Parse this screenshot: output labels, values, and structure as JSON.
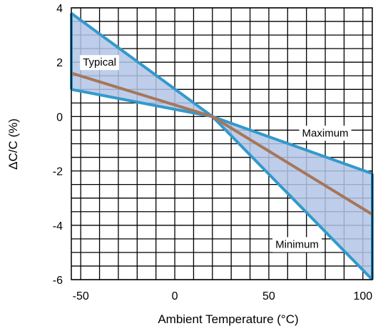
{
  "chart_data": {
    "type": "area",
    "title": "",
    "xlabel": "Ambient Temperature (°C)",
    "ylabel": "ΔC/C (%)",
    "xlim": [
      -55,
      105
    ],
    "ylim": [
      -6,
      4
    ],
    "x_ticks": [
      -50,
      0,
      50,
      100
    ],
    "y_ticks": [
      4,
      2,
      0,
      -2,
      -4,
      -6
    ],
    "x_tick_labels": [
      "-50",
      "0",
      "50",
      "100"
    ],
    "y_tick_labels": [
      "4",
      "2",
      "0",
      "-2",
      "-4",
      "-6"
    ],
    "grid": true,
    "series": [
      {
        "name": "Typical",
        "kind": "line",
        "color": "#a6765a",
        "points": [
          [
            -55,
            1.6
          ],
          [
            20,
            0
          ],
          [
            105,
            -3.6
          ]
        ]
      },
      {
        "name": "Maximum",
        "kind": "boundary",
        "color": "#3399cc",
        "points": [
          [
            -55,
            3.8
          ],
          [
            20,
            0
          ],
          [
            105,
            -2.1
          ]
        ]
      },
      {
        "name": "Minimum",
        "kind": "boundary",
        "color": "#3399cc",
        "points": [
          [
            -55,
            1.0
          ],
          [
            20,
            0
          ],
          [
            105,
            -6.0
          ]
        ]
      }
    ],
    "band_fill": "#b3c6e6",
    "annotations": [
      {
        "text": "Typical",
        "x": -40,
        "y": 2.0
      },
      {
        "text": "Maximum",
        "x": 80,
        "y": -0.6
      },
      {
        "text": "Minimum",
        "x": 65,
        "y": -4.7
      }
    ]
  }
}
